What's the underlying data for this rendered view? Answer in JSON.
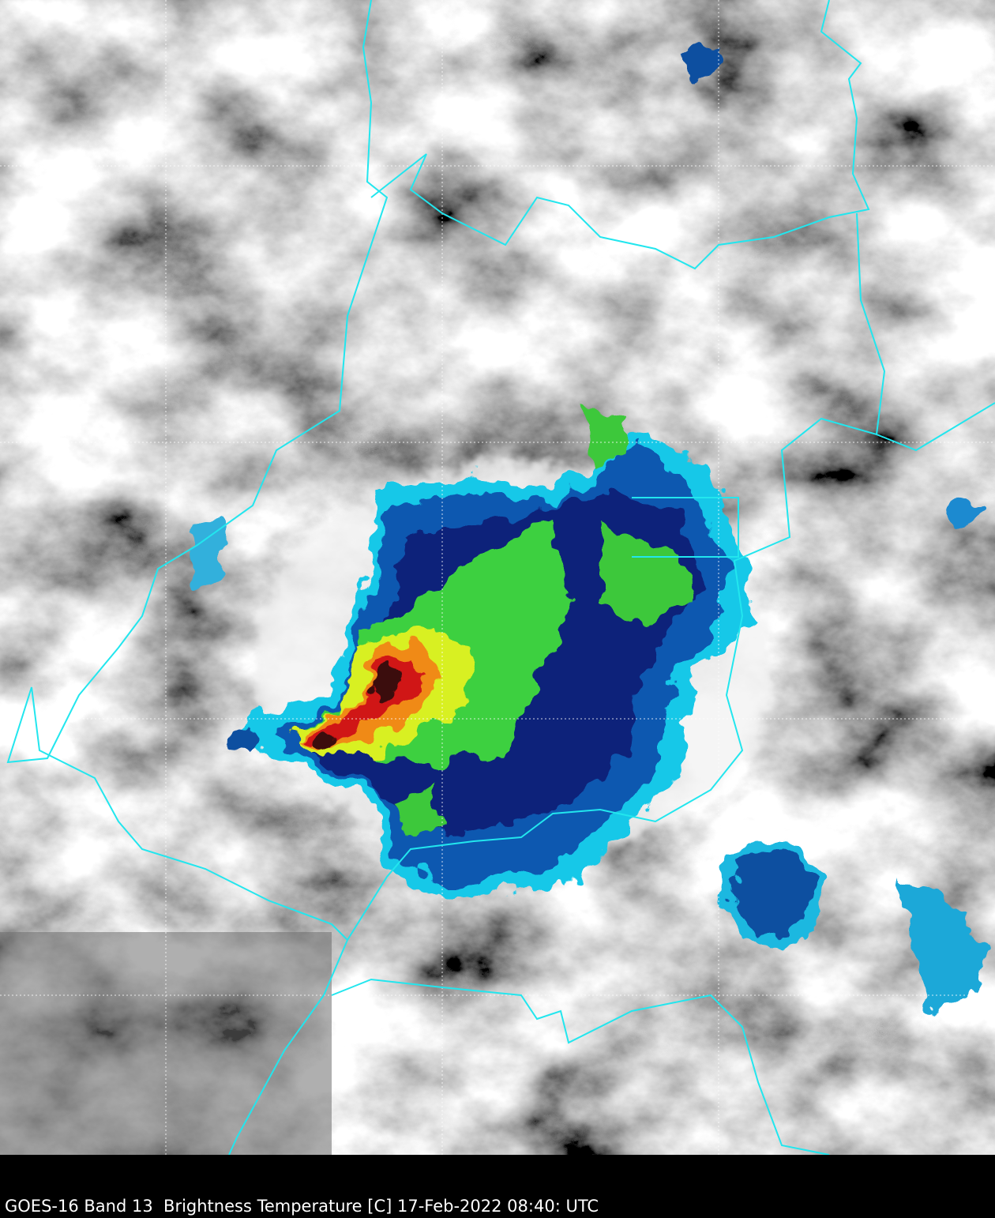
{
  "caption": "GOES-16 Band 13  Brightness Temperature [C] 17-Feb-2022 08:40: UTC"
}
